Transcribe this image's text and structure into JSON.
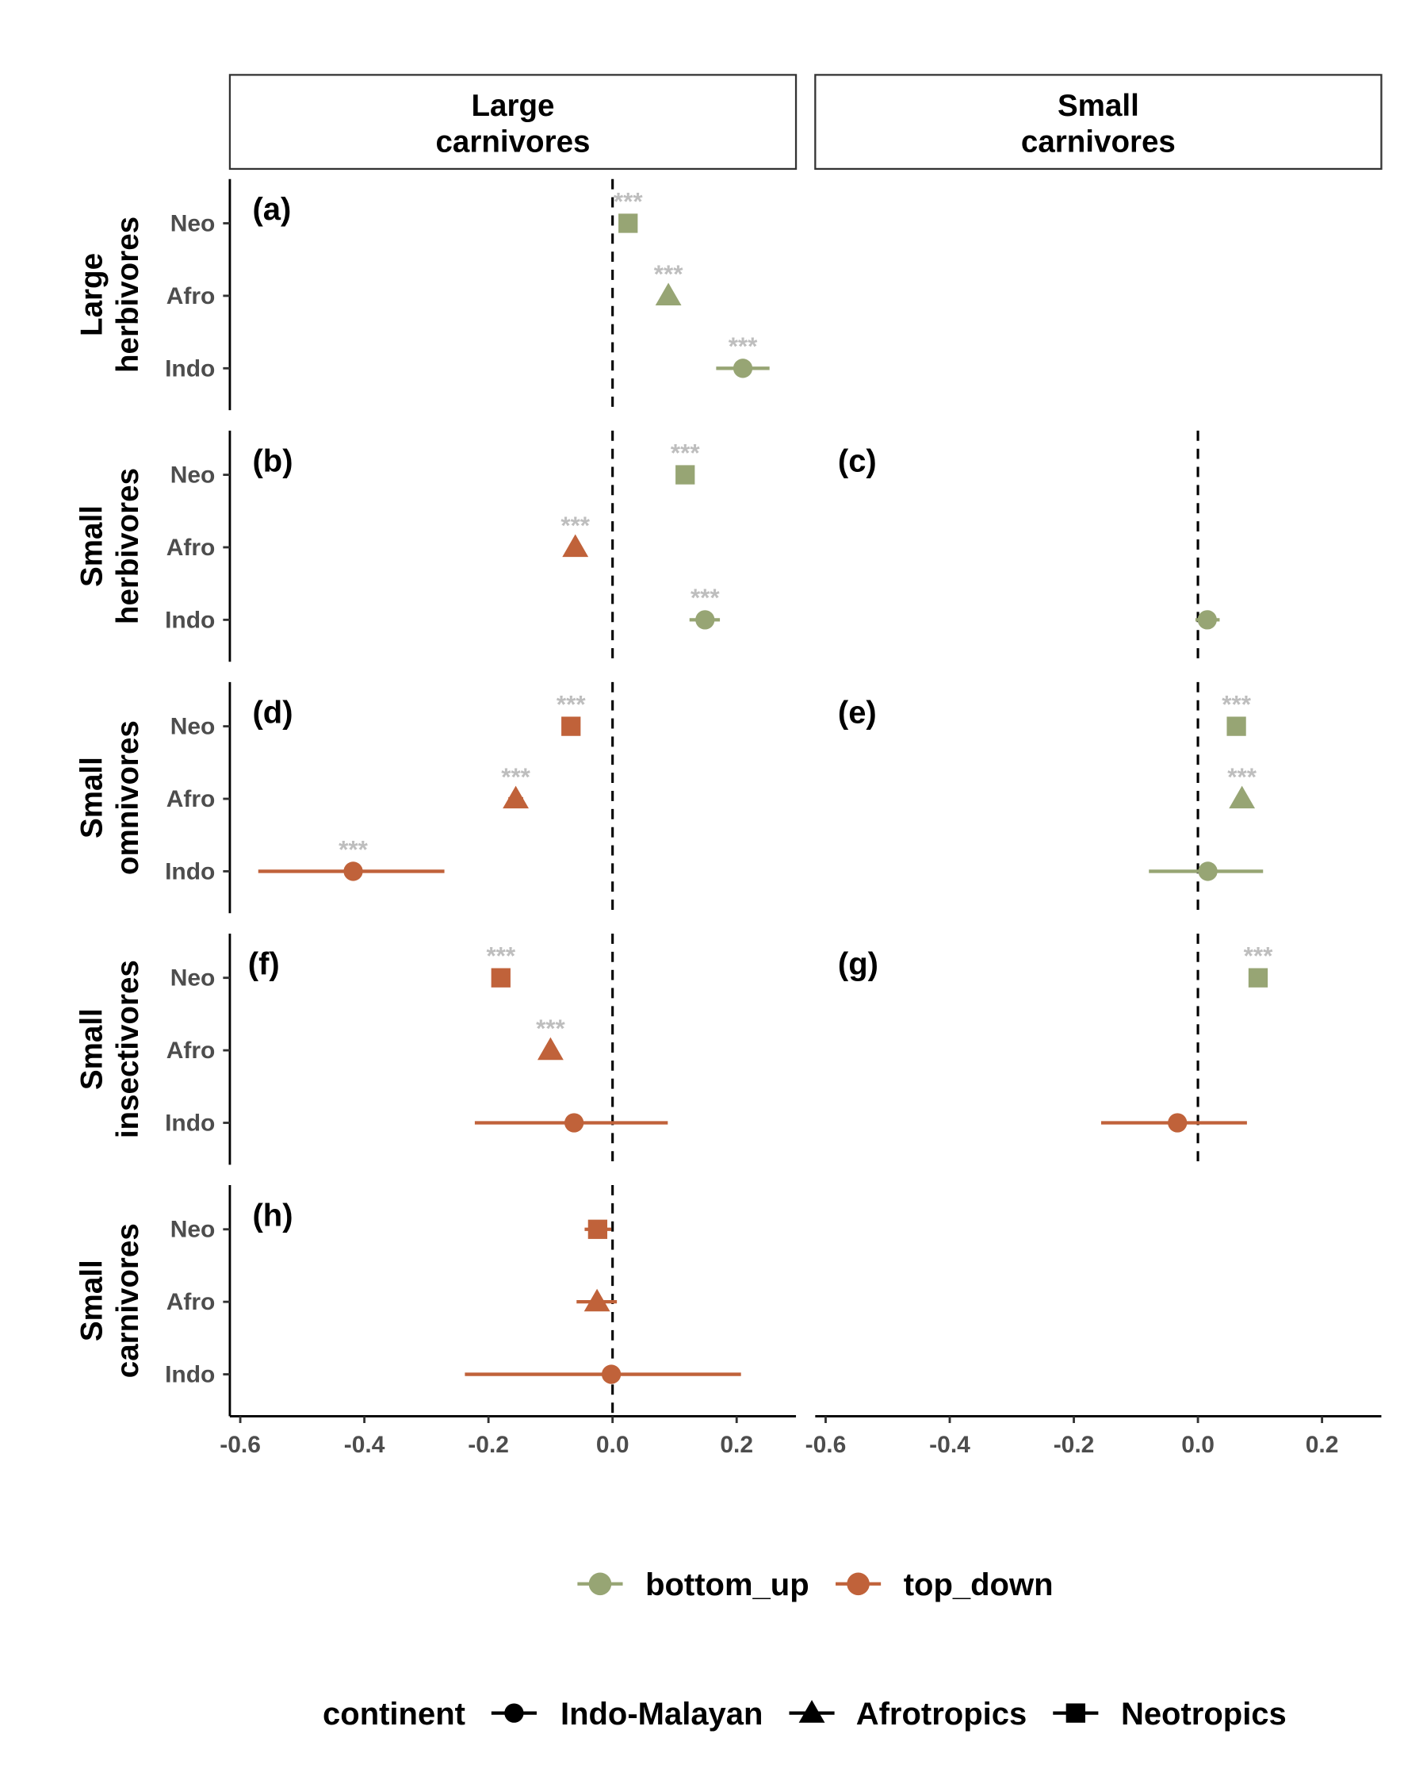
{
  "chart_data": {
    "type": "scatter",
    "subtype": "faceted point-range (forest) plot",
    "columns": [
      "Large\ncarnivores",
      "Small\ncarnivores"
    ],
    "rows": [
      "Large\nherbivores",
      "Small\nherbivores",
      "Small\nomnivores",
      "Small\ninsectivores",
      "Small\ncarnivores"
    ],
    "y_ticks": [
      "Neo",
      "Afro",
      "Indo"
    ],
    "x_ticks": [
      -0.6,
      -0.4,
      -0.2,
      0.0,
      0.2
    ],
    "x_tick_labels": [
      "-0.6",
      "-0.4",
      "-0.2",
      "0.0",
      "0.2"
    ],
    "xlim": [
      -0.62,
      0.29
    ],
    "reference_line": 0,
    "grid": false,
    "colors": {
      "bottom_up": "#97a574",
      "top_down": "#c0623a",
      "stars": "#bebebe"
    },
    "panels": [
      {
        "label": "(a)",
        "row": 0,
        "col": 0,
        "points": [
          {
            "continent": "Neo",
            "effect": "bottom_up",
            "value": 0.025,
            "ci": [
              0.018,
              0.032
            ],
            "sig": "***"
          },
          {
            "continent": "Afro",
            "effect": "bottom_up",
            "value": 0.09,
            "ci": [
              0.083,
              0.097
            ],
            "sig": "***"
          },
          {
            "continent": "Indo",
            "effect": "bottom_up",
            "value": 0.21,
            "ci": [
              0.167,
              0.253
            ],
            "sig": "***"
          }
        ]
      },
      {
        "label": "(b)",
        "row": 1,
        "col": 0,
        "points": [
          {
            "continent": "Neo",
            "effect": "bottom_up",
            "value": 0.117,
            "ci": [
              0.11,
              0.124
            ],
            "sig": "***"
          },
          {
            "continent": "Afro",
            "effect": "top_down",
            "value": -0.06,
            "ci": [
              -0.067,
              -0.053
            ],
            "sig": "***"
          },
          {
            "continent": "Indo",
            "effect": "bottom_up",
            "value": 0.149,
            "ci": [
              0.124,
              0.173
            ],
            "sig": "***"
          }
        ]
      },
      {
        "label": "(c)",
        "row": 1,
        "col": 1,
        "points": [
          {
            "continent": "Indo",
            "effect": "bottom_up",
            "value": 0.015,
            "ci": [
              -0.004,
              0.035
            ],
            "sig": ""
          }
        ]
      },
      {
        "label": "(d)",
        "row": 2,
        "col": 0,
        "points": [
          {
            "continent": "Neo",
            "effect": "top_down",
            "value": -0.067,
            "ci": [
              -0.074,
              -0.06
            ],
            "sig": "***"
          },
          {
            "continent": "Afro",
            "effect": "top_down",
            "value": -0.156,
            "ci": [
              -0.168,
              -0.144
            ],
            "sig": "***"
          },
          {
            "continent": "Indo",
            "effect": "top_down",
            "value": -0.418,
            "ci": [
              -0.571,
              -0.271
            ],
            "sig": "***"
          }
        ]
      },
      {
        "label": "(e)",
        "row": 2,
        "col": 1,
        "points": [
          {
            "continent": "Neo",
            "effect": "bottom_up",
            "value": 0.062,
            "ci": [
              0.055,
              0.069
            ],
            "sig": "***"
          },
          {
            "continent": "Afro",
            "effect": "bottom_up",
            "value": 0.071,
            "ci": [
              0.064,
              0.078
            ],
            "sig": "***"
          },
          {
            "continent": "Indo",
            "effect": "bottom_up",
            "value": 0.016,
            "ci": [
              -0.079,
              0.105
            ],
            "sig": ""
          }
        ]
      },
      {
        "label": "(f)",
        "row": 3,
        "col": 0,
        "points": [
          {
            "continent": "Neo",
            "effect": "top_down",
            "value": -0.18,
            "ci": [
              -0.188,
              -0.172
            ],
            "sig": "***"
          },
          {
            "continent": "Afro",
            "effect": "top_down",
            "value": -0.1,
            "ci": [
              -0.11,
              -0.09
            ],
            "sig": "***"
          },
          {
            "continent": "Indo",
            "effect": "top_down",
            "value": -0.062,
            "ci": [
              -0.222,
              0.089
            ],
            "sig": ""
          }
        ]
      },
      {
        "label": "(g)",
        "row": 3,
        "col": 1,
        "points": [
          {
            "continent": "Neo",
            "effect": "bottom_up",
            "value": 0.097,
            "ci": [
              0.09,
              0.104
            ],
            "sig": "***"
          },
          {
            "continent": "Indo",
            "effect": "top_down",
            "value": -0.033,
            "ci": [
              -0.156,
              0.079
            ],
            "sig": ""
          }
        ]
      },
      {
        "label": "(h)",
        "row": 4,
        "col": 0,
        "points": [
          {
            "continent": "Neo",
            "effect": "top_down",
            "value": -0.024,
            "ci": [
              -0.045,
              -0.002
            ],
            "sig": ""
          },
          {
            "continent": "Afro",
            "effect": "top_down",
            "value": -0.025,
            "ci": [
              -0.058,
              0.007
            ],
            "sig": ""
          },
          {
            "continent": "Indo",
            "effect": "top_down",
            "value": -0.002,
            "ci": [
              -0.238,
              0.207
            ],
            "sig": ""
          }
        ]
      }
    ],
    "legend": {
      "placement": "bottom",
      "effect_entries": [
        {
          "key": "bottom_up",
          "label": "bottom_up"
        },
        {
          "key": "top_down",
          "label": "top_down"
        }
      ],
      "shape_title": "continent",
      "shape_entries": [
        {
          "shape": "circle",
          "label": "Indo-Malayan"
        },
        {
          "shape": "triangle",
          "label": "Afrotropics"
        },
        {
          "shape": "square",
          "label": "Neotropics"
        }
      ]
    },
    "shape_by_continent": {
      "Indo": "circle",
      "Afro": "triangle",
      "Neo": "square"
    }
  }
}
